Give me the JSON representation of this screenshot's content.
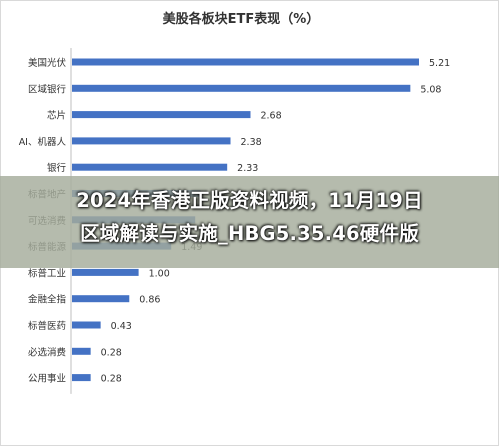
{
  "headline": {
    "line1": "2024年香港正版资料视频，11月19日",
    "line2": "区域解读与实施_HBG5.35.46硬件版"
  },
  "chart_data": {
    "type": "bar",
    "orientation": "horizontal",
    "title": "美股各板块ETF表现（%）",
    "categories": [
      "美国光伏",
      "区域银行",
      "芯片",
      "AI、机器人",
      "银行",
      "标普地产",
      "可选消费",
      "标普能源",
      "标普工业",
      "金融全指",
      "标普医药",
      "必选消费",
      "公用事业"
    ],
    "values": [
      5.21,
      5.08,
      2.68,
      2.38,
      2.33,
      1.93,
      1.85,
      1.49,
      1.0,
      0.86,
      0.43,
      0.28,
      0.28
    ],
    "value_labels": [
      "5.21",
      "5.08",
      "2.68",
      "2.38",
      "2.33",
      "1.93",
      "",
      "1.49",
      "1.00",
      "0.86",
      "0.43",
      "0.28",
      "0.28"
    ],
    "category_labels_shown": [
      "美国光伏",
      "区域银行",
      "芯片",
      "AI、机器人",
      "银行",
      "标普地产",
      "可选消费",
      "标普能源",
      "标普工业",
      "金融全指",
      "标普医药",
      "必选消费",
      "公用事业"
    ],
    "xlim": [
      0,
      6
    ],
    "bar_color": "#4472c4",
    "grid": false,
    "legend": "none"
  },
  "colors": {
    "bar": "#4472c4",
    "text": "#333333",
    "axis": "#bfbfbf"
  }
}
